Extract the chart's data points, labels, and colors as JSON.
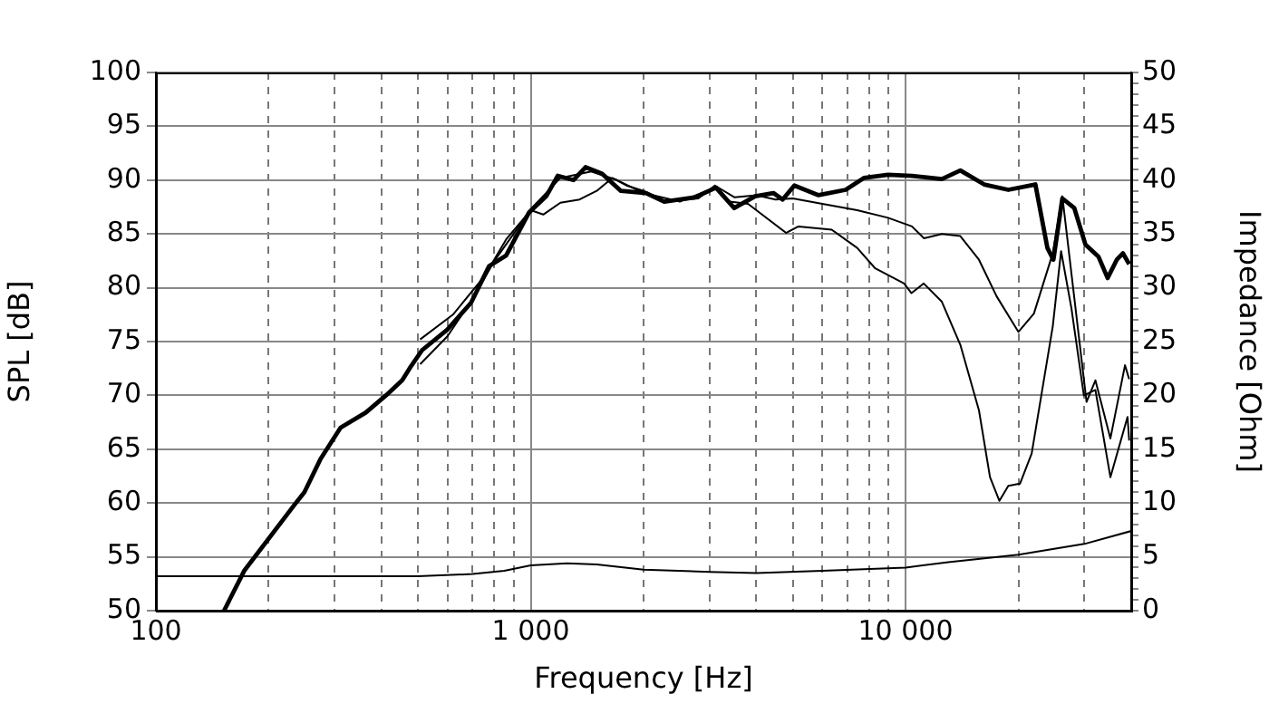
{
  "chart_data": {
    "type": "line",
    "xlabel": "Frequency [Hz]",
    "ylabel": "SPL [dB]",
    "y2label": "Impedance [Ohm]",
    "log": "x",
    "grid": true,
    "marker": "none",
    "line_style": "solid",
    "xlim": [
      100,
      40000
    ],
    "xticks": [
      100,
      {
        "value": 200,
        "label": null
      },
      {
        "value": 300,
        "label": null
      },
      {
        "value": 400,
        "label": null
      },
      {
        "value": 500,
        "label": null
      },
      {
        "value": 600,
        "label": null
      },
      {
        "value": 700,
        "label": null
      },
      {
        "value": 800,
        "label": null
      },
      {
        "value": 900,
        "label": null
      },
      {
        "value": 1000,
        "label": "1 000"
      },
      {
        "value": 2000,
        "label": null
      },
      {
        "value": 3000,
        "label": null
      },
      {
        "value": 4000,
        "label": null
      },
      {
        "value": 5000,
        "label": null
      },
      {
        "value": 6000,
        "label": null
      },
      {
        "value": 7000,
        "label": null
      },
      {
        "value": 8000,
        "label": null
      },
      {
        "value": 9000,
        "label": null
      },
      {
        "value": 10000,
        "label": "10 000"
      },
      {
        "value": 20000,
        "label": null
      },
      {
        "value": 30000,
        "label": null
      }
    ],
    "ylim": [
      50,
      100
    ],
    "yticks": [
      50,
      55,
      60,
      65,
      70,
      75,
      80,
      85,
      90,
      95,
      100
    ],
    "y2lim": [
      0,
      50
    ],
    "y2ticks": [
      0,
      {
        "value": 1,
        "label": null
      },
      {
        "value": 2,
        "label": null
      },
      {
        "value": 3,
        "label": null
      },
      {
        "value": 4,
        "label": null
      },
      5,
      {
        "value": 6,
        "label": null
      },
      {
        "value": 7,
        "label": null
      },
      {
        "value": 8,
        "label": null
      },
      {
        "value": 9,
        "label": null
      },
      10,
      {
        "value": 11,
        "label": null
      },
      {
        "value": 12,
        "label": null
      },
      {
        "value": 13,
        "label": null
      },
      {
        "value": 14,
        "label": null
      },
      15,
      {
        "value": 16,
        "label": null
      },
      {
        "value": 17,
        "label": null
      },
      {
        "value": 18,
        "label": null
      },
      {
        "value": 19,
        "label": null
      },
      20,
      {
        "value": 21,
        "label": null
      },
      {
        "value": 22,
        "label": null
      },
      {
        "value": 23,
        "label": null
      },
      {
        "value": 24,
        "label": null
      },
      25,
      {
        "value": 26,
        "label": null
      },
      {
        "value": 27,
        "label": null
      },
      {
        "value": 28,
        "label": null
      },
      {
        "value": 29,
        "label": null
      },
      30,
      {
        "value": 31,
        "label": null
      },
      {
        "value": 32,
        "label": null
      },
      {
        "value": 33,
        "label": null
      },
      {
        "value": 34,
        "label": null
      },
      35,
      {
        "value": 36,
        "label": null
      },
      {
        "value": 37,
        "label": null
      },
      {
        "value": 38,
        "label": null
      },
      {
        "value": 39,
        "label": null
      },
      40,
      {
        "value": 41,
        "label": null
      },
      {
        "value": 42,
        "label": null
      },
      {
        "value": 43,
        "label": null
      },
      {
        "value": 44,
        "label": null
      },
      45,
      {
        "value": 46,
        "label": null
      },
      {
        "value": 47,
        "label": null
      },
      {
        "value": 48,
        "label": null
      },
      {
        "value": 49,
        "label": null
      },
      50
    ],
    "series": [
      {
        "color": "#000000",
        "x": [
          152,
          172,
          235,
          249,
          275,
          311,
          363,
          411,
          454,
          475,
          513,
          599,
          693,
          774,
          860,
          990,
          1100,
          1180,
          1300,
          1400,
          1550,
          1740,
          2030,
          2270,
          2740,
          3120,
          3490,
          3970,
          4440,
          4700,
          5050,
          5860,
          6920,
          7740,
          8980,
          10400,
          12500,
          14000,
          16200,
          18800,
          22200,
          23900,
          24800,
          26200,
          28200,
          30200,
          32700,
          34600,
          36600,
          38000,
          39500
        ],
        "values": [
          50,
          53.7,
          59.9,
          61,
          64.1,
          67,
          68.4,
          70,
          71.4,
          72.5,
          74.2,
          76.1,
          78.6,
          82,
          83,
          87,
          88.5,
          90.4,
          90,
          91.2,
          90.6,
          89,
          88.8,
          88,
          88.4,
          89.3,
          87.4,
          88.5,
          88.8,
          88.2,
          89.5,
          88.6,
          89.1,
          90.2,
          90.5,
          90.4,
          90.1,
          90.9,
          89.6,
          89.1,
          89.6,
          83.7,
          82.6,
          88.3,
          87.4,
          84,
          82.9,
          80.9,
          82.6,
          83.2,
          82.2
        ]
      },
      {
        "color": "#000000",
        "x": [
          507,
          620,
          750,
          860,
          1000,
          1080,
          1200,
          1350,
          1500,
          1650,
          1800,
          2000,
          2300,
          2800,
          3100,
          3500,
          4000,
          4500,
          5000,
          6000,
          7430,
          8980,
          10400,
          11200,
          12500,
          14000,
          15700,
          17500,
          20000,
          22000,
          24700,
          26200,
          30400,
          32100,
          35200,
          38500,
          39500
        ],
        "values": [
          75.2,
          77.5,
          81,
          84.5,
          87.2,
          86.8,
          87.9,
          88.2,
          89,
          90.2,
          89.5,
          89,
          88,
          88.3,
          89.5,
          88.4,
          88.6,
          88.2,
          88.3,
          87.8,
          87.2,
          86.5,
          85.7,
          84.6,
          85,
          84.8,
          82.6,
          79.2,
          75.9,
          77.6,
          83.2,
          88.5,
          69.4,
          71.4,
          66,
          72.8,
          71.5
        ]
      },
      {
        "color": "#000000",
        "x": [
          507,
          600,
          700,
          800,
          900,
          1000,
          1200,
          1450,
          1700,
          2000,
          2500,
          3100,
          3400,
          3800,
          4800,
          5180,
          6350,
          7430,
          8300,
          9910,
          10370,
          11180,
          12500,
          14000,
          15700,
          16800,
          17800,
          18800,
          20200,
          21700,
          24700,
          26000,
          27700,
          29900,
          32100,
          35200,
          39100,
          39500
        ],
        "values": [
          72.9,
          75.5,
          79,
          82.5,
          85,
          87.3,
          90.2,
          90.8,
          90,
          88.8,
          88,
          89.3,
          88,
          87.8,
          85.1,
          85.7,
          85.4,
          83.7,
          81.8,
          80.4,
          79.5,
          80.4,
          78.7,
          74.7,
          68.6,
          62.4,
          60.2,
          61.6,
          61.8,
          64.6,
          76.4,
          83.4,
          78.1,
          70,
          70.5,
          62.4,
          68,
          65.8
        ]
      },
      {
        "color": "#000000",
        "axis": "y2",
        "x": [
          100,
          300,
          500,
          700,
          850,
          1000,
          1250,
          1500,
          2000,
          3000,
          4000,
          6000,
          10000,
          13000,
          20000,
          30000,
          40000
        ],
        "values": [
          3.2,
          3.2,
          3.2,
          3.4,
          3.7,
          4.2,
          4.4,
          4.3,
          3.8,
          3.6,
          3.5,
          3.7,
          4,
          4.5,
          5.2,
          6.2,
          7.4
        ]
      }
    ]
  }
}
